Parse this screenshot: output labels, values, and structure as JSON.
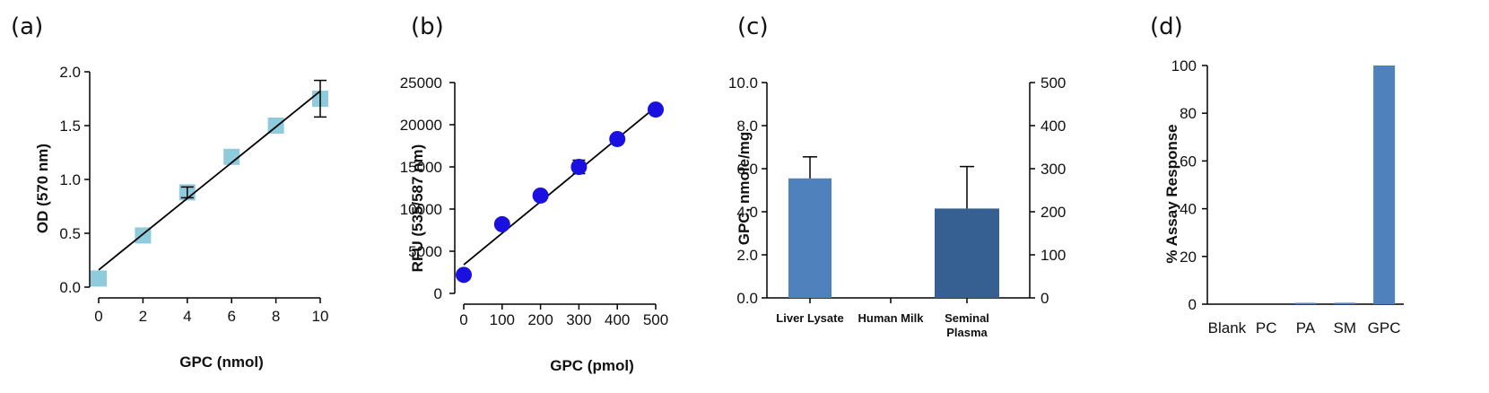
{
  "panels": [
    "(a)",
    "(b)",
    "(c)",
    "(d)"
  ],
  "chart_data": [
    {
      "type": "scatter",
      "title": "",
      "xlabel": "GPC (nmol)",
      "ylabel": "OD (570 nm)",
      "xlim": [
        0,
        10
      ],
      "ylim": [
        0,
        2.0
      ],
      "xticks": [
        0,
        2,
        4,
        6,
        8,
        10
      ],
      "yticks": [
        "0.0",
        "0.5",
        "1.0",
        "1.5",
        "2.0"
      ],
      "x": [
        0,
        2,
        4,
        6,
        8,
        10
      ],
      "y": [
        0.08,
        0.48,
        0.88,
        1.21,
        1.5,
        1.75
      ],
      "error": [
        0,
        0,
        0.05,
        0,
        0,
        0.17
      ],
      "fit": [
        [
          0,
          0.16
        ],
        [
          10,
          1.82
        ]
      ],
      "marker": "square",
      "color": "#8ecbdc"
    },
    {
      "type": "scatter",
      "title": "",
      "xlabel": "GPC (pmol)",
      "ylabel": "RFU (535/587 nm)",
      "xlim": [
        0,
        500
      ],
      "ylim": [
        0,
        25000
      ],
      "xticks": [
        0,
        100,
        200,
        300,
        400,
        500
      ],
      "yticks": [
        "0",
        "5000",
        "10000",
        "15000",
        "20000",
        "25000"
      ],
      "x": [
        0,
        100,
        200,
        300,
        400,
        500
      ],
      "y": [
        2200,
        8200,
        11600,
        15000,
        18300,
        21800
      ],
      "error": [
        0,
        0,
        0,
        800,
        0,
        0
      ],
      "fit": [
        [
          0,
          3400
        ],
        [
          500,
          22100
        ]
      ],
      "marker": "circle",
      "color": "#1a10e0"
    },
    {
      "type": "bar",
      "title": "",
      "ylabel": "GPC, nmole/mg",
      "categories": [
        "Liver Lysate",
        "Human Milk",
        "Seminal Plasma"
      ],
      "category_lines": [
        [
          "Liver Lysate"
        ],
        [
          "Human Milk"
        ],
        [
          "Seminal",
          "Plasma"
        ]
      ],
      "ylim": [
        0,
        10.0
      ],
      "yticks": [
        "0.0",
        "2.0",
        "4.0",
        "6.0",
        "8.0",
        "10.0"
      ],
      "y2lim": [
        0,
        500
      ],
      "y2ticks": [
        "0",
        "100",
        "200",
        "300",
        "400",
        "500"
      ],
      "values": [
        5.55,
        null,
        4.15
      ],
      "error": [
        1.0,
        null,
        1.95
      ],
      "colors": [
        "#4f81bd",
        null,
        "#366092"
      ]
    },
    {
      "type": "bar",
      "title": "",
      "ylabel": "% Assay Response",
      "categories": [
        "Blank",
        "PC",
        "PA",
        "SM",
        "GPC"
      ],
      "ylim": [
        0,
        100
      ],
      "yticks": [
        "0",
        "20",
        "40",
        "60",
        "80",
        "100"
      ],
      "values": [
        0,
        0,
        0.3,
        0.6,
        100
      ],
      "color": "#4f81bd"
    }
  ]
}
